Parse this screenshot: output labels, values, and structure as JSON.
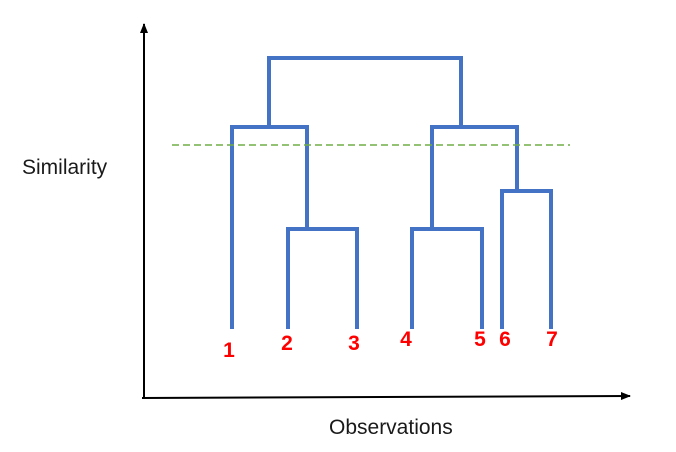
{
  "diagram": {
    "axes": {
      "y_label": "Similarity",
      "x_label": "Observations"
    },
    "leaves": [
      "1",
      "2",
      "3",
      "4",
      "5",
      "6",
      "7"
    ],
    "merges": [
      {
        "id": "m23",
        "children": [
          "2",
          "3"
        ]
      },
      {
        "id": "m45",
        "children": [
          "4",
          "5"
        ]
      },
      {
        "id": "m67",
        "children": [
          "6",
          "7"
        ]
      },
      {
        "id": "m1_23",
        "children": [
          "1",
          "m23"
        ]
      },
      {
        "id": "m45_67",
        "children": [
          "m45",
          "m67"
        ]
      },
      {
        "id": "root",
        "children": [
          "m1_23",
          "m45_67"
        ]
      }
    ],
    "cut_line": {
      "style": "dashed"
    },
    "colors": {
      "tree": "#4472c4",
      "labels": "#ff0000",
      "cut_line": "#70ad47",
      "axes": "#000000"
    }
  }
}
